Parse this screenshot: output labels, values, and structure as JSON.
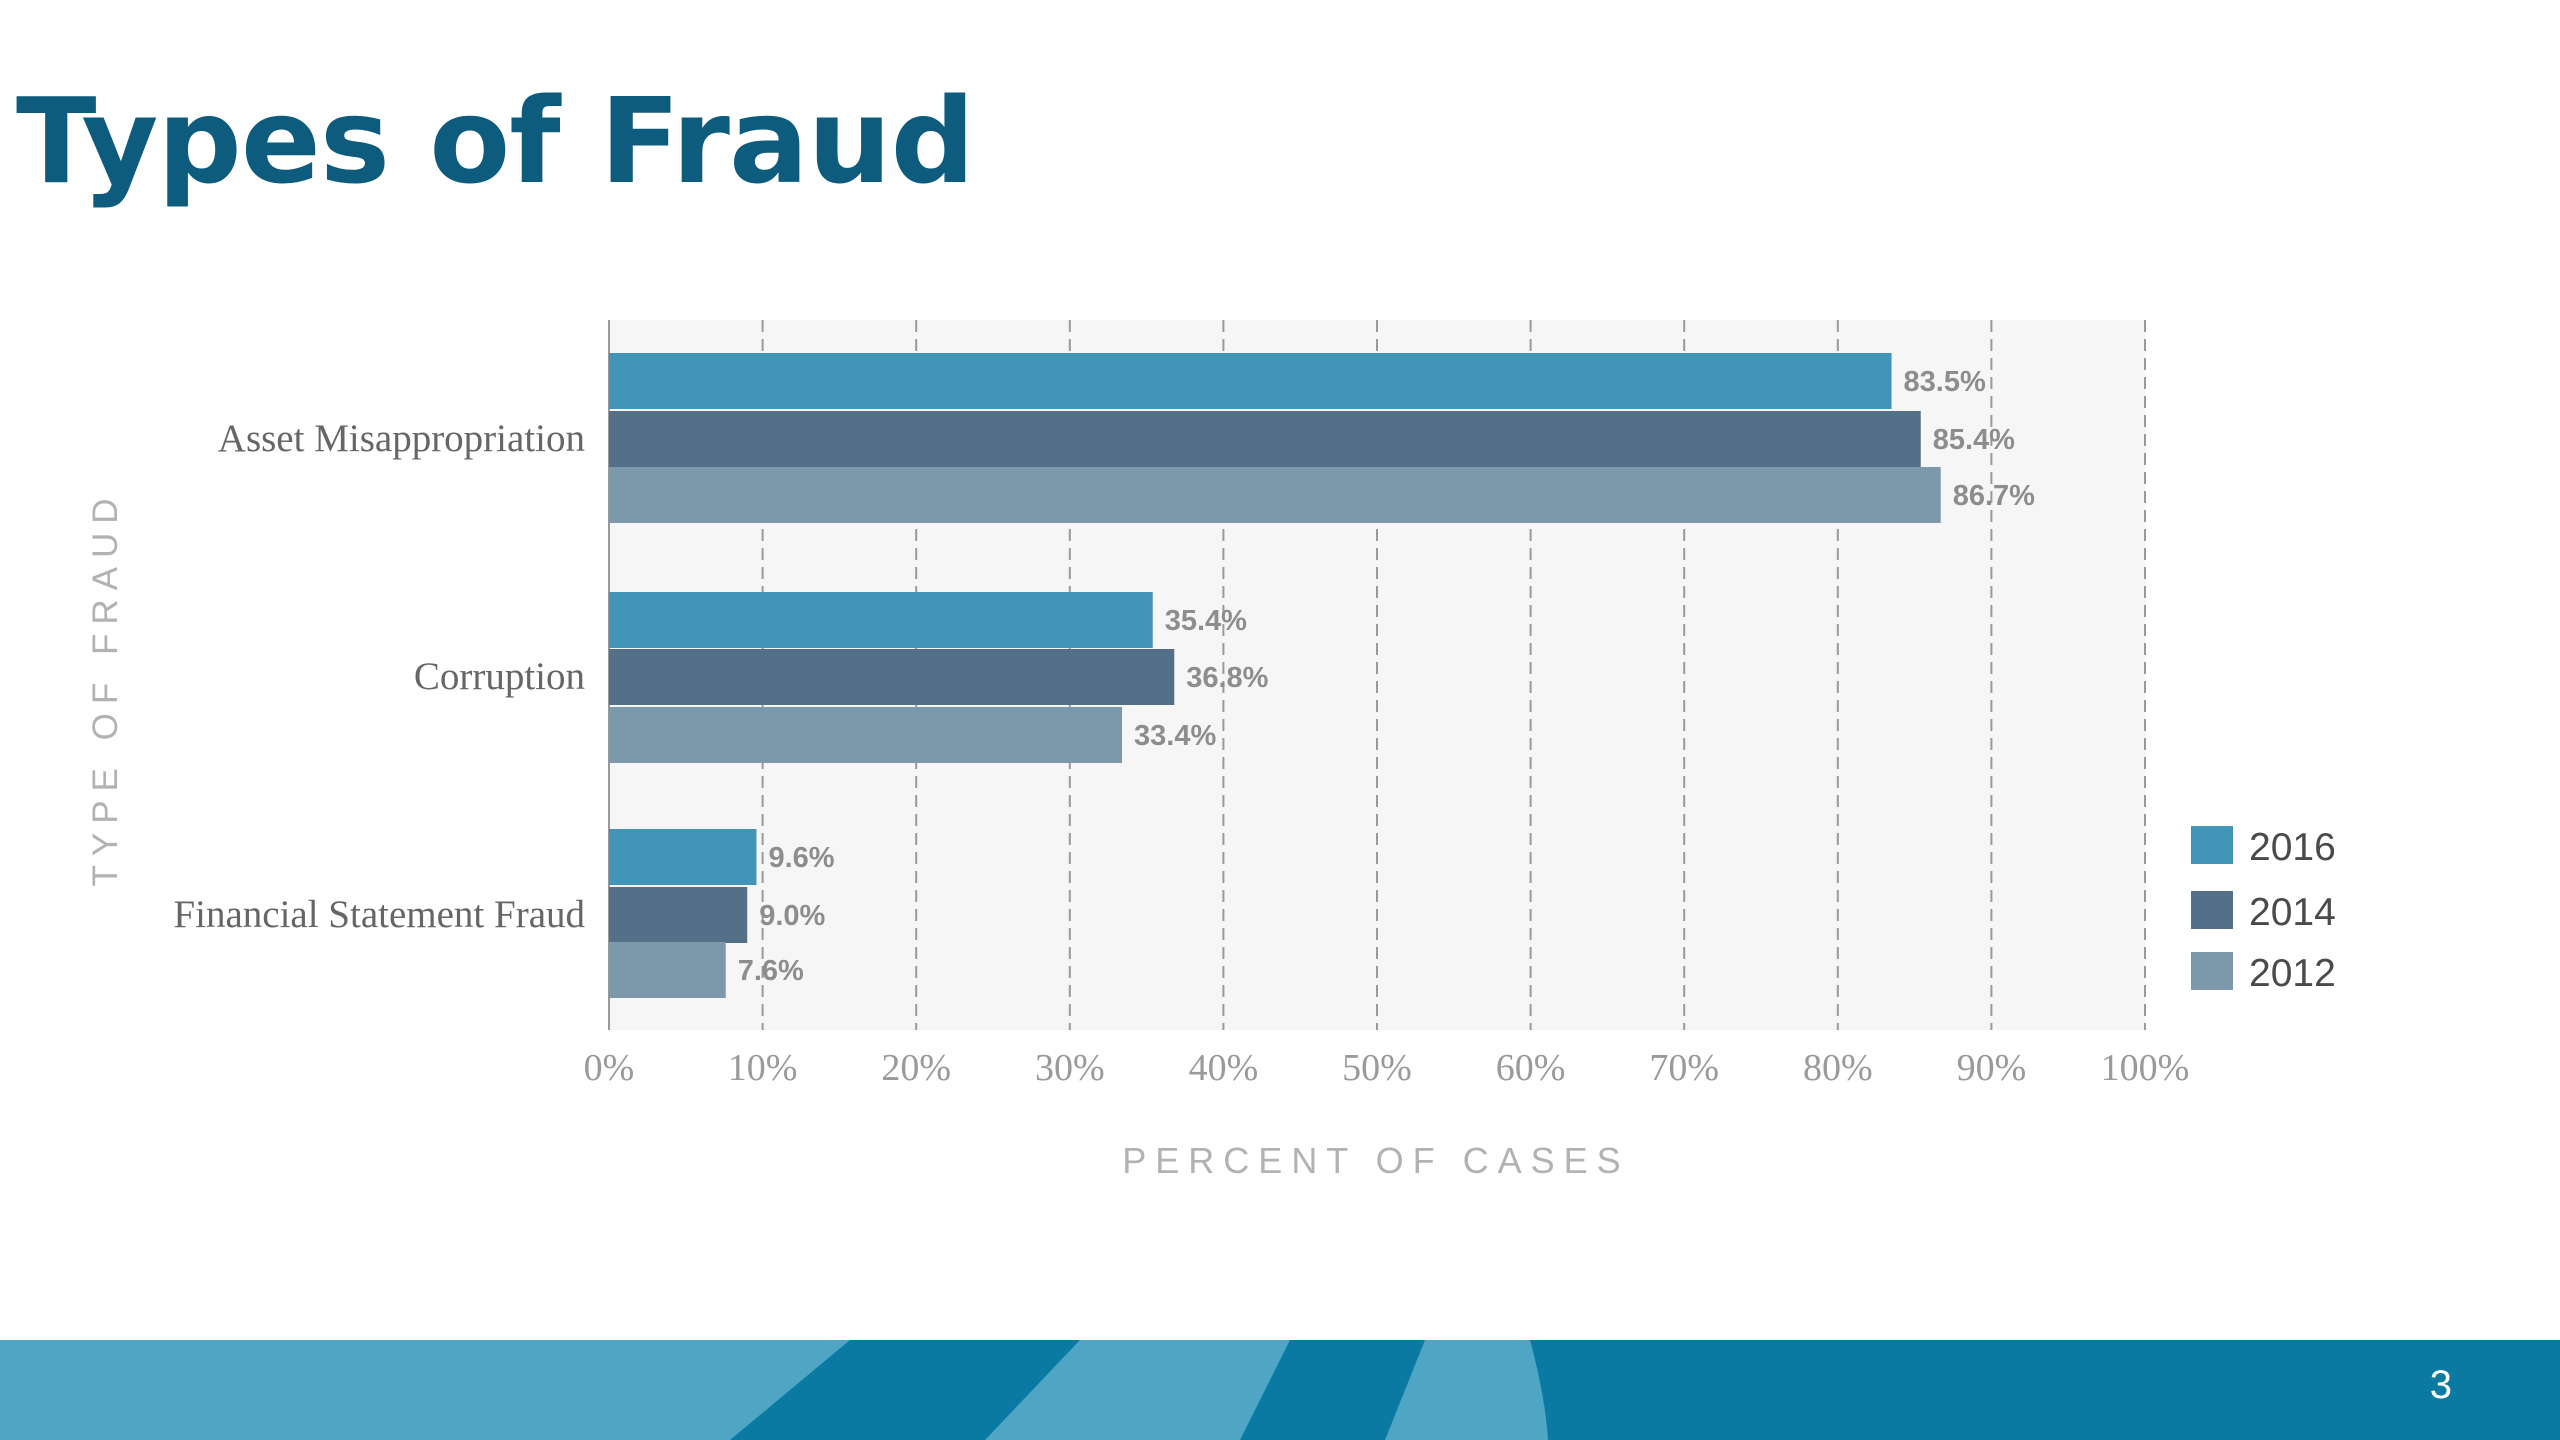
{
  "slide": {
    "title": "Types of Fraud",
    "page_number": "3"
  },
  "colors": {
    "title": "#0d5c7e",
    "footer_dark": "#0a7aa3",
    "footer_light": "#4ea6c4"
  },
  "chart_data": {
    "type": "bar",
    "orientation": "horizontal",
    "categories": [
      "Asset Misappropriation",
      "Corruption",
      "Financial Statement Fraud"
    ],
    "series": [
      {
        "name": "2016",
        "values": [
          83.5,
          35.4,
          9.6
        ],
        "labels": [
          "83.5%",
          "35.4%",
          "9.6%"
        ],
        "color": "#4295b7"
      },
      {
        "name": "2014",
        "values": [
          85.4,
          36.8,
          9.0
        ],
        "labels": [
          "85.4%",
          "36.8%",
          "9.0%"
        ],
        "color": "#537088"
      },
      {
        "name": "2012",
        "values": [
          86.7,
          33.4,
          7.6
        ],
        "labels": [
          "86.7%",
          "33.4%",
          "7.6%"
        ],
        "color": "#7d98ab"
      }
    ],
    "xlabel": "PERCENT OF CASES",
    "ylabel": "TYPE OF FRAUD",
    "xlim": [
      0,
      100
    ],
    "xticks": [
      0,
      10,
      20,
      30,
      40,
      50,
      60,
      70,
      80,
      90,
      100
    ],
    "xtick_labels": [
      "0%",
      "10%",
      "20%",
      "30%",
      "40%",
      "50%",
      "60%",
      "70%",
      "80%",
      "90%",
      "100%"
    ],
    "grid": true,
    "legend": {
      "position": "right",
      "order": [
        "2016",
        "2014",
        "2012"
      ]
    }
  }
}
